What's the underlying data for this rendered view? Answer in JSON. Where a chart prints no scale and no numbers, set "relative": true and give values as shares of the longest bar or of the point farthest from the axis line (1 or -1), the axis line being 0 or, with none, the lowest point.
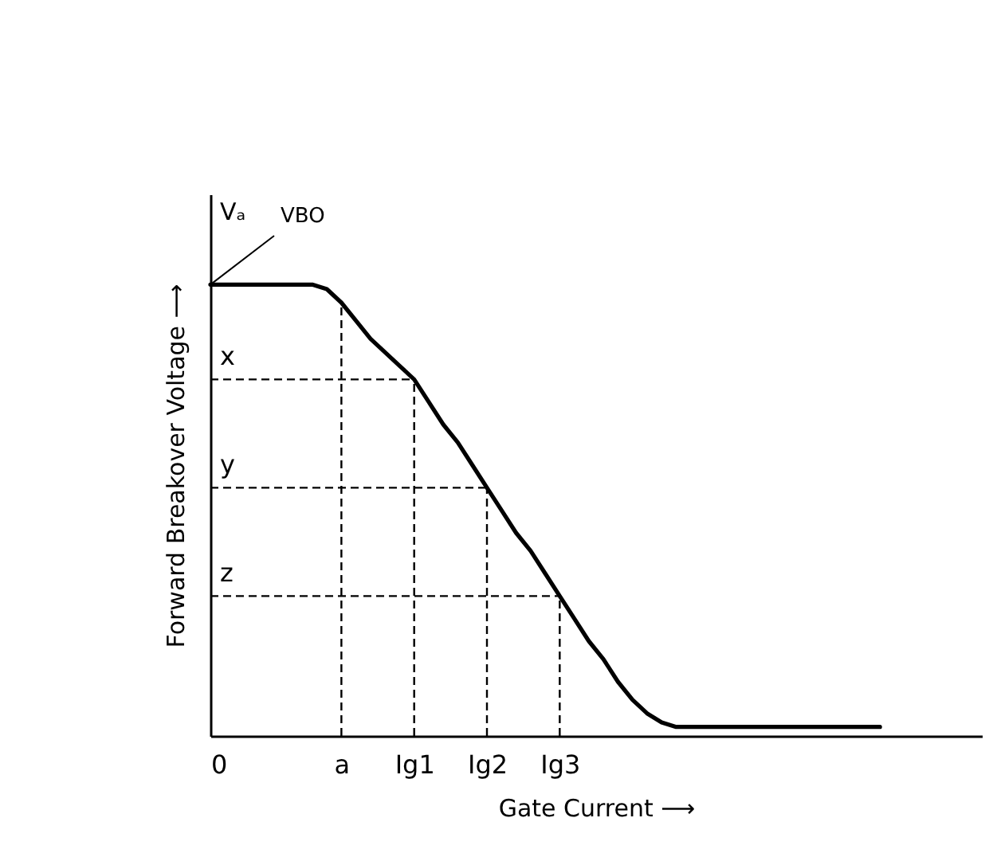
{
  "chart_data": {
    "type": "line",
    "relative": true,
    "xlabel": "Gate Current ⟶",
    "ylabel": "Forward Breakover Voltage ⟶",
    "categories": [
      "0",
      null,
      null,
      null,
      null,
      null,
      null,
      null,
      null,
      "a",
      null,
      null,
      null,
      null,
      "Ig1",
      null,
      null,
      null,
      null,
      "Ig2",
      null,
      null,
      null,
      null,
      "Ig3",
      null,
      null,
      null,
      null,
      null,
      null,
      null,
      null,
      null,
      null,
      null,
      null,
      null,
      null,
      null,
      null,
      null,
      null,
      null,
      null,
      null,
      null,
      null,
      null,
      null,
      null,
      null,
      null,
      null
    ],
    "series": [
      {
        "color": "#000000",
        "values": [
          1,
          1,
          1,
          1,
          1,
          1,
          1,
          1,
          0.99,
          0.96,
          0.92,
          0.88,
          0.85,
          0.82,
          0.79,
          0.74,
          0.69,
          0.65,
          0.6,
          0.55,
          0.5,
          0.45,
          0.41,
          0.36,
          0.31,
          0.26,
          0.21,
          0.17,
          0.12,
          0.08,
          0.05,
          0.03,
          0.02,
          0.02,
          0.02,
          0.02,
          0.02,
          0.02,
          0.02,
          0.02,
          0.02,
          0.02,
          0.02,
          0.02,
          0.02,
          0.02,
          0.02,
          null,
          null,
          null,
          null,
          null,
          null,
          null
        ]
      }
    ],
    "grid": false,
    "marker": "none",
    "line_style": "solid",
    "ref_lines": [
      {
        "axis": "x",
        "value": "a",
        "line_style": "dashed"
      },
      {
        "axis": "x",
        "value": "Ig1",
        "line_style": "dashed"
      },
      {
        "axis": "x",
        "value": "Ig2",
        "line_style": "dashed"
      },
      {
        "axis": "x",
        "value": "Ig3",
        "line_style": "dashed"
      },
      {
        "axis": "y",
        "value": 0.79,
        "label": "x",
        "line_style": "dashed"
      },
      {
        "axis": "y",
        "value": 0.55,
        "label": "y",
        "line_style": "dashed"
      },
      {
        "axis": "y",
        "value": 0.31,
        "label": "z",
        "line_style": "dashed"
      }
    ],
    "annotations": [
      {
        "text": "VBO",
        "x": "0",
        "y": 1
      },
      "Vₐ"
    ]
  }
}
